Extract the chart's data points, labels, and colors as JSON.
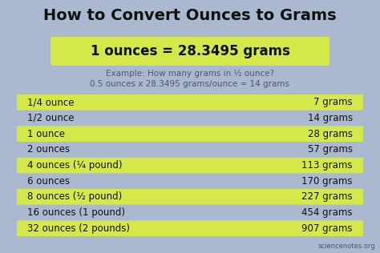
{
  "title": "How to Convert Ounces to Grams",
  "formula": "1 ounces = 28.3495 grams",
  "example_line1": "Example: How many grams in ½ ounce?",
  "example_line2": "0.5 ounces x 28.3495 grams/ounce = 14 grams",
  "bg_color": "#aab8d0",
  "highlight_color": "#d4e84a",
  "title_color": "#111111",
  "text_color": "#111111",
  "example_color": "#555566",
  "watermark": "sciencenotes.org",
  "rows": [
    {
      "left": "1/4 ounce",
      "right": "7 grams",
      "highlight": true
    },
    {
      "left": "1/2 ounce",
      "right": "14 grams",
      "highlight": false
    },
    {
      "left": "1 ounce",
      "right": "28 grams",
      "highlight": true
    },
    {
      "left": "2 ounces",
      "right": "57 grams",
      "highlight": false
    },
    {
      "left": "4 ounces (¼ pound)",
      "right": "113 grams",
      "highlight": true
    },
    {
      "left": "6 ounces",
      "right": "170 grams",
      "highlight": false
    },
    {
      "left": "8 ounces (½ pound)",
      "right": "227 grams",
      "highlight": true
    },
    {
      "left": "16 ounces (1 pound)",
      "right": "454 grams",
      "highlight": false
    },
    {
      "left": "32 ounces (2 pounds)",
      "right": "907 grams",
      "highlight": true
    }
  ]
}
